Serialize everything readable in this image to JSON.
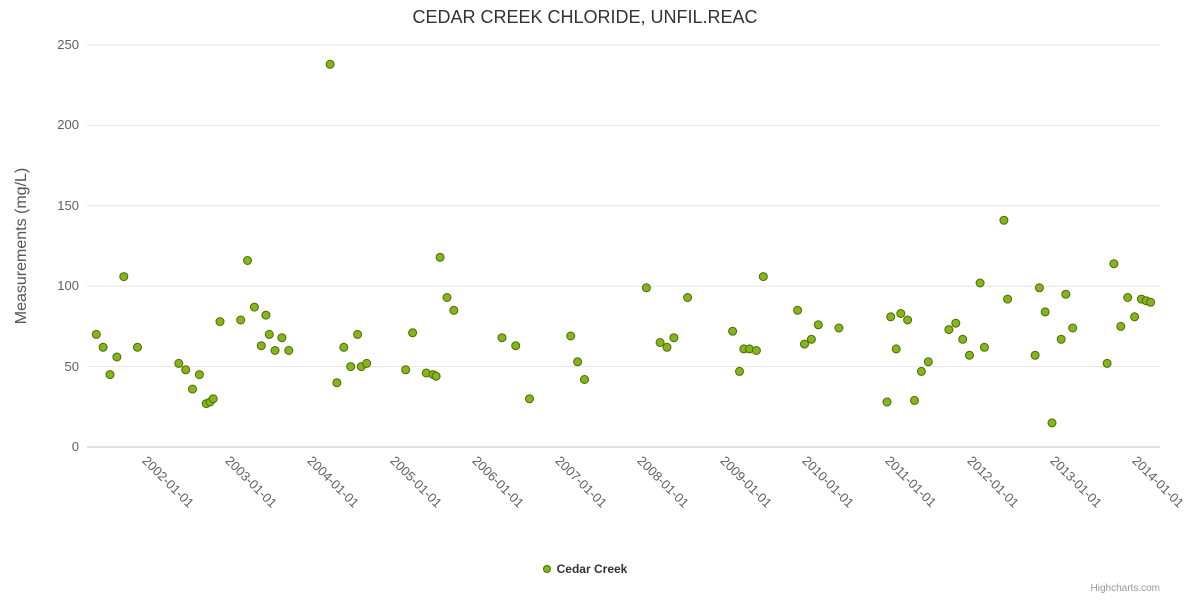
{
  "credits": "Highcharts.com",
  "chart_data": {
    "type": "scatter",
    "title": "CEDAR CREEK CHLORIDE, UNFIL.REAC",
    "xlabel": "",
    "ylabel": "Measurements (mg/L)",
    "ylim": [
      0,
      250
    ],
    "yticks": [
      0,
      50,
      100,
      150,
      200,
      250
    ],
    "x_range": [
      2001.176,
      2014.18
    ],
    "xtick_labels": [
      "2002-01-01",
      "2003-01-01",
      "2004-01-01",
      "2005-01-01",
      "2006-01-01",
      "2007-01-01",
      "2008-01-01",
      "2009-01-01",
      "2010-01-01",
      "2011-01-01",
      "2012-01-01",
      "2013-01-01",
      "2014-01-01"
    ],
    "grid": "horizontal",
    "grid_color": "#e6e6e6",
    "axis_line_color": "#c0c0c0",
    "legend_position": "bottom-center",
    "series": [
      {
        "name": "Cedar Creek",
        "marker": {
          "fill": "#86b41e",
          "stroke": "#4f6b00",
          "radius": 4
        },
        "points": [
          [
            "2001-04",
            70
          ],
          [
            "2001-05",
            62
          ],
          [
            "2001-06",
            45
          ],
          [
            "2001-07",
            56
          ],
          [
            "2001-08",
            106
          ],
          [
            "2001-10",
            62
          ],
          [
            "2002-04",
            52
          ],
          [
            "2002-05",
            48
          ],
          [
            "2002-06",
            36
          ],
          [
            "2002-07",
            45
          ],
          [
            "2002-08",
            27
          ],
          [
            "2002-09-01",
            28
          ],
          [
            "2002-09-15",
            30
          ],
          [
            "2002-10",
            78
          ],
          [
            "2003-01",
            79
          ],
          [
            "2003-02",
            116
          ],
          [
            "2003-03",
            87
          ],
          [
            "2003-04",
            63
          ],
          [
            "2003-05-05",
            82
          ],
          [
            "2003-05-20",
            70
          ],
          [
            "2003-06",
            60
          ],
          [
            "2003-07",
            68
          ],
          [
            "2003-08",
            60
          ],
          [
            "2004-02",
            238
          ],
          [
            "2004-03",
            40
          ],
          [
            "2004-04",
            62
          ],
          [
            "2004-05",
            50
          ],
          [
            "2004-06",
            70
          ],
          [
            "2004-07-01",
            50
          ],
          [
            "2004-07-25",
            52
          ],
          [
            "2005-01",
            48
          ],
          [
            "2005-02",
            71
          ],
          [
            "2005-04",
            46
          ],
          [
            "2005-05",
            45
          ],
          [
            "2005-05-28",
            44
          ],
          [
            "2005-06",
            118
          ],
          [
            "2005-07",
            93
          ],
          [
            "2005-08",
            85
          ],
          [
            "2006-03",
            68
          ],
          [
            "2006-05",
            63
          ],
          [
            "2006-07",
            30
          ],
          [
            "2007-01",
            69
          ],
          [
            "2007-02",
            53
          ],
          [
            "2007-03",
            42
          ],
          [
            "2007-12",
            99
          ],
          [
            "2008-02",
            65
          ],
          [
            "2008-03",
            62
          ],
          [
            "2008-04",
            68
          ],
          [
            "2008-06",
            93
          ],
          [
            "2009-01-01",
            72
          ],
          [
            "2009-02-01",
            47
          ],
          [
            "2009-02-20",
            61
          ],
          [
            "2009-03",
            61
          ],
          [
            "2009-04",
            60
          ],
          [
            "2009-05",
            106
          ],
          [
            "2009-10",
            85
          ],
          [
            "2009-11",
            64
          ],
          [
            "2009-12",
            67
          ],
          [
            "2010-01",
            76
          ],
          [
            "2010-04",
            74
          ],
          [
            "2010-11",
            28
          ],
          [
            "2010-12-01",
            81
          ],
          [
            "2010-12-25",
            61
          ],
          [
            "2011-01",
            83
          ],
          [
            "2011-02",
            79
          ],
          [
            "2011-03",
            29
          ],
          [
            "2011-04",
            47
          ],
          [
            "2011-05",
            53
          ],
          [
            "2011-08",
            73
          ],
          [
            "2011-09",
            77
          ],
          [
            "2011-10",
            67
          ],
          [
            "2011-11",
            57
          ],
          [
            "2012-01-01",
            102
          ],
          [
            "2012-01-20",
            62
          ],
          [
            "2012-04",
            141
          ],
          [
            "2012-05-01",
            92
          ],
          [
            "2012-09-01",
            57
          ],
          [
            "2012-09-20",
            99
          ],
          [
            "2012-10",
            84
          ],
          [
            "2012-11",
            15
          ],
          [
            "2012-12-25",
            67
          ],
          [
            "2013-01",
            95
          ],
          [
            "2013-02",
            74
          ],
          [
            "2013-07",
            52
          ],
          [
            "2013-08",
            114
          ],
          [
            "2013-09",
            75
          ],
          [
            "2013-10",
            93
          ],
          [
            "2013-11",
            81
          ],
          [
            "2013-12",
            92
          ],
          [
            "2014-01-05",
            91
          ],
          [
            "2014-01-25",
            90
          ]
        ]
      }
    ]
  }
}
